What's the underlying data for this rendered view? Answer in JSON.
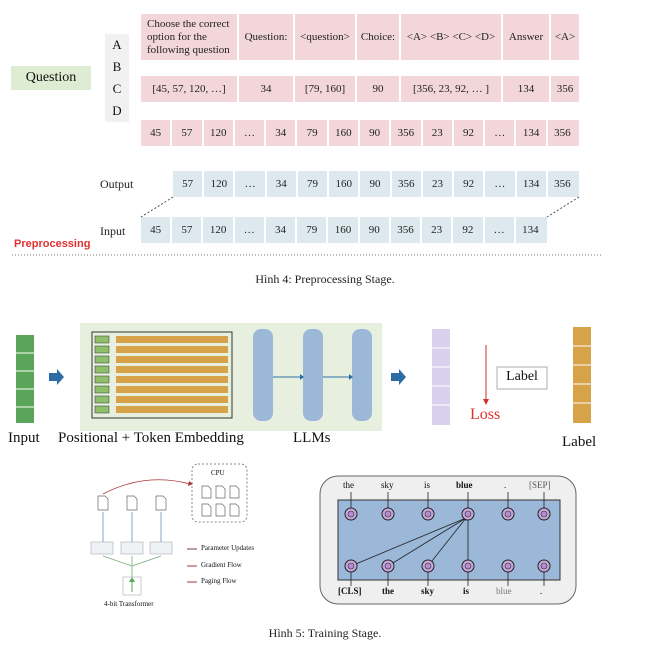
{
  "fig4": {
    "question_label": "Question",
    "abcd": [
      "A",
      "B",
      "C",
      "D"
    ],
    "row1": [
      "Choose the correct option for the following question",
      "Question:",
      "<question>",
      "Choice:",
      "<A> <B> <C> <D>",
      "Answer",
      "<A>"
    ],
    "row2": [
      "[45, 57, 120, …]",
      "34",
      "[79, 160]",
      "90",
      "[356, 23, 92, … ]",
      "134",
      "356"
    ],
    "row3": [
      "45",
      "57",
      "120",
      "…",
      "34",
      "79",
      "160",
      "90",
      "356",
      "23",
      "92",
      "…",
      "134",
      "356"
    ],
    "output_label": "Output",
    "output_row": [
      "57",
      "120",
      "…",
      "34",
      "79",
      "160",
      "90",
      "356",
      "23",
      "92",
      "…",
      "134",
      "356"
    ],
    "input_label": "Input",
    "input_row": [
      "45",
      "57",
      "120",
      "…",
      "34",
      "79",
      "160",
      "90",
      "356",
      "23",
      "92",
      "…",
      "134"
    ],
    "preprocessing_label": "Preprocessing",
    "caption": "Hình 4: Preprocessing Stage."
  },
  "fig5": {
    "input_label": "Input",
    "embedding_label": "Positional + Token Embedding",
    "llms_label": "LLMs",
    "label_box": "Label",
    "loss_label": "Loss",
    "label_bottom": "Label",
    "cpu_label": "CPU",
    "transformer_label": "4-bit Transformer",
    "legend": [
      "Parameter Updates",
      "Gradient Flow",
      "Paging Flow"
    ],
    "bert_top": [
      "the",
      "sky",
      "is",
      "blue",
      ".",
      "[SEP]"
    ],
    "bert_bottom": [
      "[CLS]",
      "the",
      "sky",
      "is",
      "blue",
      "."
    ],
    "caption": "Hình 5: Training Stage."
  },
  "colors": {
    "pink": "#f2d6da",
    "lightblue": "#dde9ef",
    "green": "#5aa55a",
    "panel_green": "#e7f0df",
    "llm_blue": "#9bb8d8",
    "purple": "#d8d0ec",
    "gold": "#d6a34a",
    "loss_red": "#e03030"
  }
}
